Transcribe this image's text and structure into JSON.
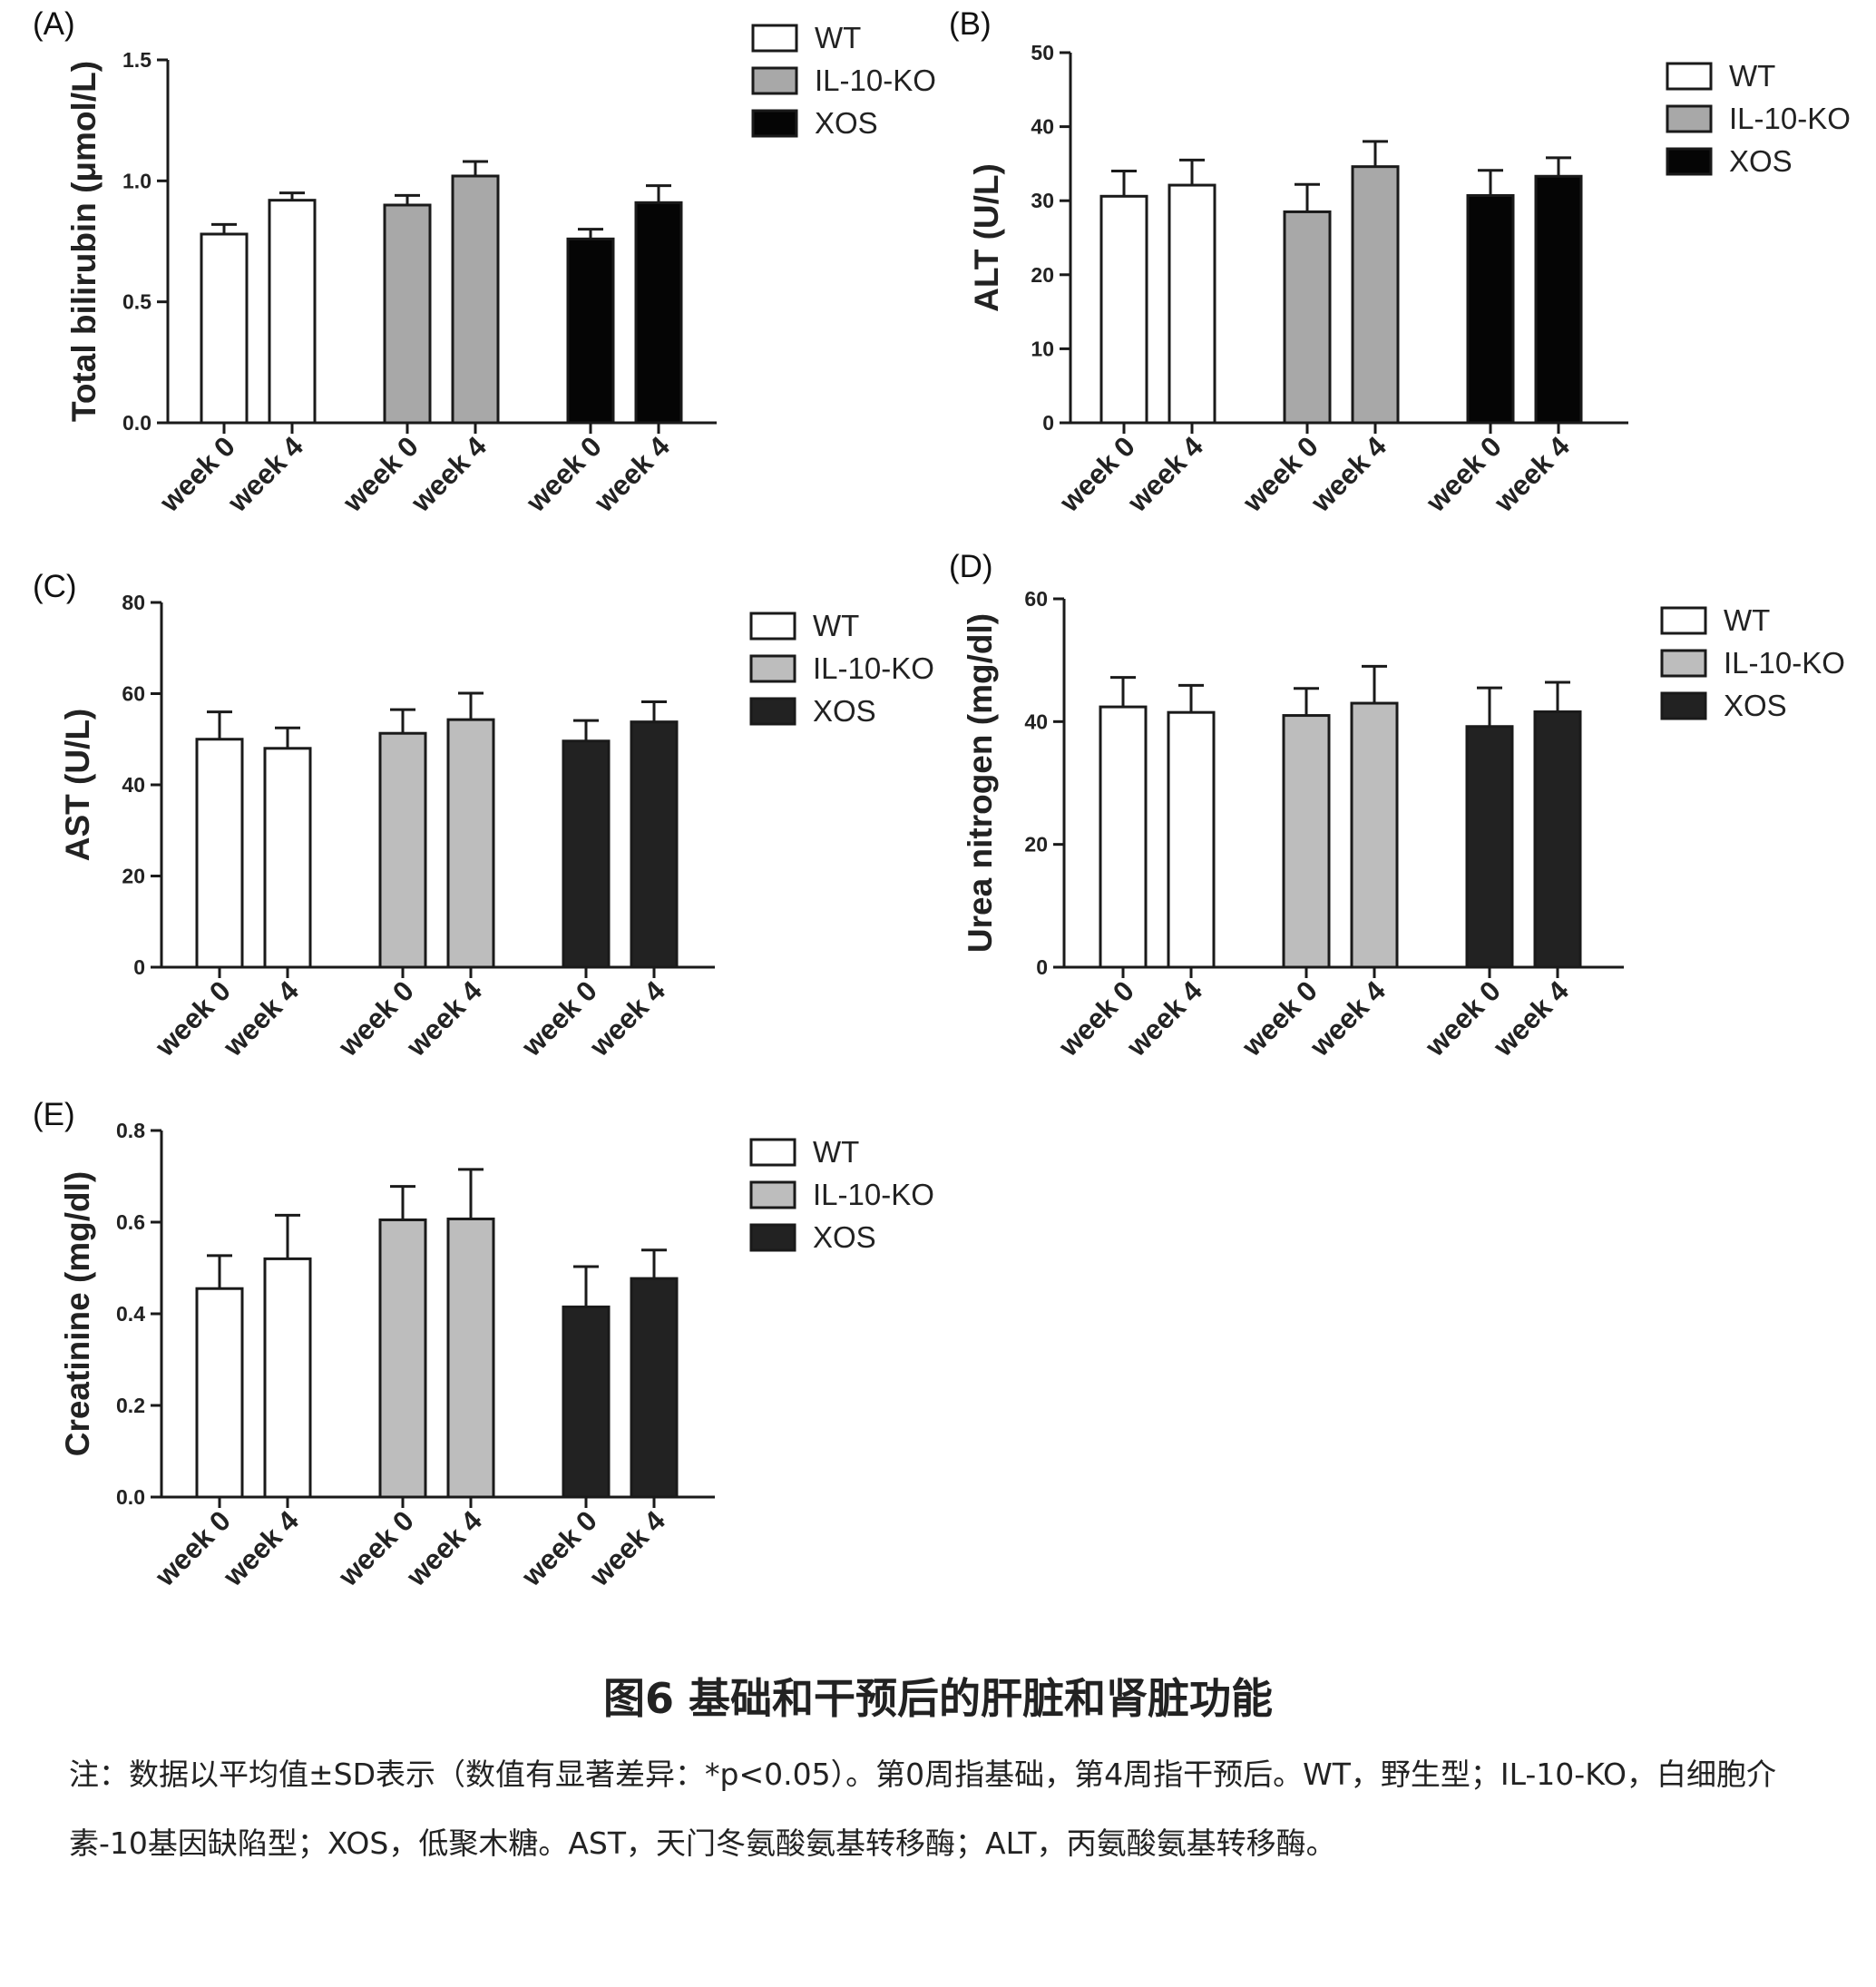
{
  "legend": [
    "WT",
    "IL-10-KO",
    "XOS"
  ],
  "chart_data": [
    {
      "panel": "(A)",
      "type": "bar",
      "categories": [
        "week 0",
        "week 4",
        "week 0",
        "week 4",
        "week 0",
        "week 4"
      ],
      "groups": [
        "WT",
        "IL-10-KO",
        "XOS"
      ],
      "values": [
        0.78,
        0.92,
        0.9,
        1.02,
        0.76,
        0.91
      ],
      "errors": [
        0.04,
        0.03,
        0.04,
        0.06,
        0.04,
        0.07
      ],
      "ylabel": "Total bilirubin (μmol/L)",
      "ylim": [
        0,
        1.5
      ],
      "yticks": [
        "0.0",
        "0.5",
        "1.0",
        "1.5"
      ],
      "colors": [
        "#ffffff",
        "#a8a8a8",
        "#050505"
      ]
    },
    {
      "panel": "(B)",
      "type": "bar",
      "categories": [
        "week 0",
        "week 4",
        "week 0",
        "week 4",
        "week 0",
        "week 4"
      ],
      "groups": [
        "WT",
        "IL-10-KO",
        "XOS"
      ],
      "values": [
        30.6,
        32.1,
        28.5,
        34.6,
        30.7,
        33.3
      ],
      "errors": [
        3.4,
        3.4,
        3.7,
        3.4,
        3.4,
        2.5
      ],
      "ylabel": "ALT (U/L)",
      "ylim": [
        0,
        50
      ],
      "yticks": [
        "0",
        "10",
        "20",
        "30",
        "40",
        "50"
      ],
      "colors": [
        "#ffffff",
        "#a8a8a8",
        "#050505"
      ]
    },
    {
      "panel": "(C)",
      "type": "bar",
      "categories": [
        "week 0",
        "week 4",
        "week 0",
        "week 4",
        "week 0",
        "week 4"
      ],
      "groups": [
        "WT",
        "IL-10-KO",
        "XOS"
      ],
      "values": [
        50,
        48,
        51.3,
        54.3,
        49.6,
        53.8
      ],
      "errors": [
        6,
        4.5,
        5.2,
        5.8,
        4.5,
        4.4
      ],
      "ylabel": "AST (U/L)",
      "ylim": [
        0,
        80
      ],
      "yticks": [
        "0",
        "20",
        "40",
        "60",
        "80"
      ],
      "colors": [
        "#ffffff",
        "#bdbdbd",
        "#222222"
      ]
    },
    {
      "panel": "(D)",
      "type": "bar",
      "categories": [
        "week 0",
        "week 4",
        "week 0",
        "week 4",
        "week 0",
        "week 4"
      ],
      "groups": [
        "WT",
        "IL-10-KO",
        "XOS"
      ],
      "values": [
        42.4,
        41.5,
        41,
        43,
        39.2,
        41.6
      ],
      "errors": [
        4.8,
        4.4,
        4.4,
        6,
        6.3,
        4.8
      ],
      "ylabel": "Urea nitrogen (mg/dl)",
      "ylim": [
        0,
        60
      ],
      "yticks": [
        "0",
        "20",
        "40",
        "60"
      ],
      "colors": [
        "#ffffff",
        "#bdbdbd",
        "#222222"
      ]
    },
    {
      "panel": "(E)",
      "type": "bar",
      "categories": [
        "week 0",
        "week 4",
        "week 0",
        "week 4",
        "week 0",
        "week 4"
      ],
      "groups": [
        "WT",
        "IL-10-KO",
        "XOS"
      ],
      "values": [
        0.455,
        0.52,
        0.605,
        0.607,
        0.415,
        0.477
      ],
      "errors": [
        0.072,
        0.095,
        0.073,
        0.108,
        0.088,
        0.062
      ],
      "ylabel": "Creatinine (mg/dl)",
      "ylim": [
        0,
        0.8
      ],
      "yticks": [
        "0.0",
        "0.2",
        "0.4",
        "0.6",
        "0.8"
      ],
      "colors": [
        "#ffffff",
        "#bdbdbd",
        "#222222"
      ]
    }
  ],
  "caption": {
    "title": "图6 基础和干预后的肝脏和肾脏功能",
    "note": "注：数据以平均值±SD表示（数值有显著差异：*p<0.05）。第0周指基础，第4周指干预后。WT，野生型；IL-10-KO，白细胞介素-10基因缺陷型；XOS，低聚木糖。AST，天门冬氨酸氨基转移酶；ALT，丙氨酸氨基转移酶。"
  }
}
